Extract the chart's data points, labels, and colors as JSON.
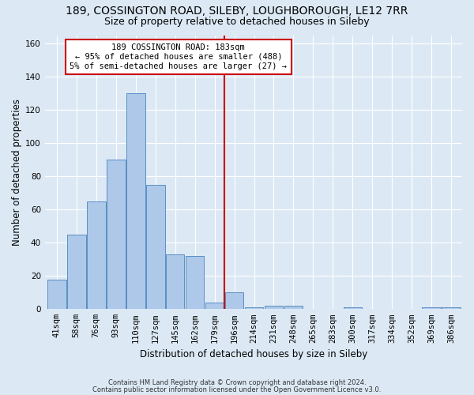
{
  "title": "189, COSSINGTON ROAD, SILEBY, LOUGHBOROUGH, LE12 7RR",
  "subtitle": "Size of property relative to detached houses in Sileby",
  "xlabel": "Distribution of detached houses by size in Sileby",
  "ylabel": "Number of detached properties",
  "bar_labels": [
    "41sqm",
    "58sqm",
    "76sqm",
    "93sqm",
    "110sqm",
    "127sqm",
    "145sqm",
    "162sqm",
    "179sqm",
    "196sqm",
    "214sqm",
    "231sqm",
    "248sqm",
    "265sqm",
    "283sqm",
    "300sqm",
    "317sqm",
    "334sqm",
    "352sqm",
    "369sqm",
    "386sqm"
  ],
  "bar_heights": [
    18,
    45,
    65,
    90,
    130,
    75,
    33,
    32,
    4,
    10,
    1,
    2,
    2,
    0,
    0,
    1,
    0,
    0,
    0,
    1,
    1
  ],
  "bar_color": "#adc8e8",
  "bar_edge_color": "#5a8fc2",
  "property_line_x": 8.5,
  "annotation_text": "189 COSSINGTON ROAD: 183sqm\n← 95% of detached houses are smaller (488)\n5% of semi-detached houses are larger (27) →",
  "annotation_box_color": "#ffffff",
  "annotation_box_edge_color": "#cc0000",
  "vline_color": "#cc0000",
  "ylim": [
    0,
    165
  ],
  "yticks": [
    0,
    20,
    40,
    60,
    80,
    100,
    120,
    140,
    160
  ],
  "bg_color": "#dce9f5",
  "grid_color": "#ffffff",
  "footer_line1": "Contains HM Land Registry data © Crown copyright and database right 2024.",
  "footer_line2": "Contains public sector information licensed under the Open Government Licence v3.0.",
  "title_fontsize": 10,
  "subtitle_fontsize": 9,
  "xlabel_fontsize": 8.5,
  "ylabel_fontsize": 8.5,
  "annot_fontsize": 7.5,
  "tick_fontsize": 7.5,
  "footer_fontsize": 6.0
}
